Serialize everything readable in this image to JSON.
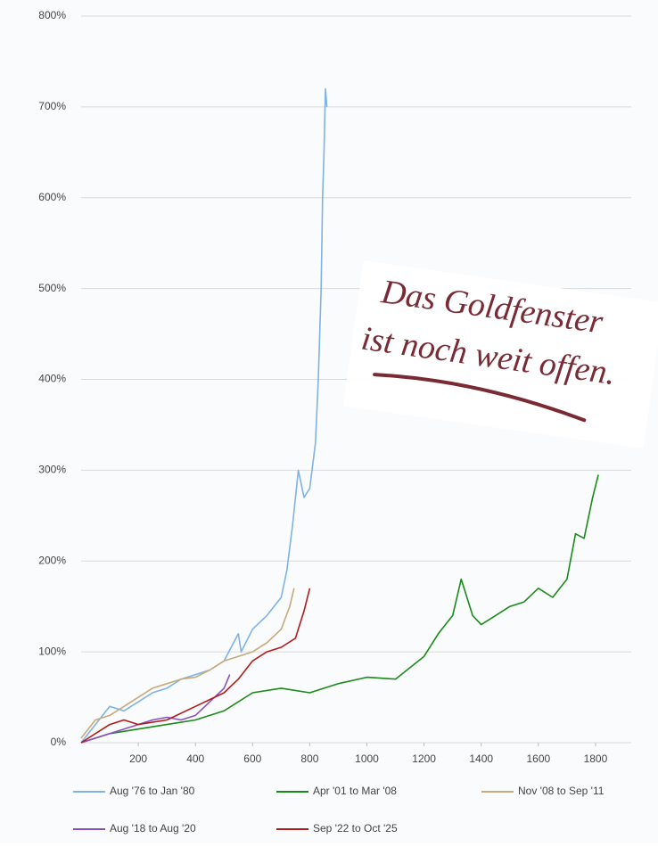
{
  "chart_data": {
    "type": "line",
    "annotations": [
      "Das Goldfenster",
      "ist noch weit offen."
    ],
    "xlim": [
      0,
      1925
    ],
    "ylim": [
      0,
      800
    ],
    "xticks": [
      200,
      400,
      600,
      800,
      1000,
      1200,
      1400,
      1600,
      1800
    ],
    "yticks": [
      {
        "value": 0,
        "label": "0%"
      },
      {
        "value": 100,
        "label": "100%"
      },
      {
        "value": 200,
        "label": "200%"
      },
      {
        "value": 300,
        "label": "300%"
      },
      {
        "value": 400,
        "label": "400%"
      },
      {
        "value": 500,
        "label": "500%"
      },
      {
        "value": 600,
        "label": "600%"
      },
      {
        "value": 700,
        "label": "700%"
      },
      {
        "value": 800,
        "label": "800%"
      }
    ],
    "grid": true,
    "legend": "bottom",
    "series": [
      {
        "name": "Aug '76 to Jan '80",
        "color": "#7fb2e5",
        "x": [
          0,
          50,
          100,
          150,
          200,
          250,
          300,
          350,
          400,
          450,
          500,
          550,
          560,
          600,
          650,
          700,
          720,
          740,
          760,
          780,
          800,
          820,
          830,
          840,
          845,
          850,
          855,
          860
        ],
        "values": [
          0,
          20,
          40,
          35,
          45,
          55,
          60,
          70,
          75,
          80,
          90,
          120,
          100,
          125,
          140,
          160,
          190,
          240,
          300,
          270,
          280,
          330,
          400,
          500,
          600,
          650,
          720,
          700
        ]
      },
      {
        "name": "Apr '01 to Mar '08",
        "color": "#1a8a1a",
        "x": [
          0,
          100,
          200,
          300,
          400,
          500,
          600,
          700,
          800,
          900,
          1000,
          1100,
          1200,
          1250,
          1300,
          1330,
          1370,
          1400,
          1450,
          1500,
          1550,
          1600,
          1650,
          1700,
          1730,
          1760,
          1790,
          1810
        ],
        "values": [
          0,
          10,
          15,
          20,
          25,
          35,
          55,
          60,
          55,
          65,
          72,
          70,
          95,
          120,
          140,
          180,
          140,
          130,
          140,
          150,
          155,
          170,
          160,
          180,
          230,
          225,
          270,
          295
        ]
      },
      {
        "name": "Nov '08 to Sep '11",
        "color": "#c8aa7a",
        "x": [
          0,
          50,
          100,
          150,
          200,
          250,
          300,
          350,
          400,
          450,
          500,
          550,
          600,
          650,
          700,
          730,
          745
        ],
        "values": [
          5,
          25,
          30,
          40,
          50,
          60,
          65,
          70,
          72,
          80,
          90,
          95,
          100,
          110,
          125,
          150,
          170
        ]
      },
      {
        "name": "Aug '18 to Aug '20",
        "color": "#8a4fbf",
        "x": [
          0,
          100,
          200,
          250,
          300,
          350,
          400,
          450,
          500,
          520
        ],
        "values": [
          0,
          10,
          20,
          25,
          28,
          25,
          30,
          45,
          60,
          75
        ]
      },
      {
        "name": "Sep '22 to Oct '25",
        "color": "#b01c1c",
        "x": [
          0,
          50,
          100,
          150,
          200,
          300,
          400,
          500,
          550,
          600,
          650,
          700,
          750,
          780,
          800
        ],
        "values": [
          0,
          10,
          20,
          25,
          20,
          25,
          40,
          55,
          70,
          90,
          100,
          105,
          115,
          145,
          170
        ]
      }
    ]
  }
}
